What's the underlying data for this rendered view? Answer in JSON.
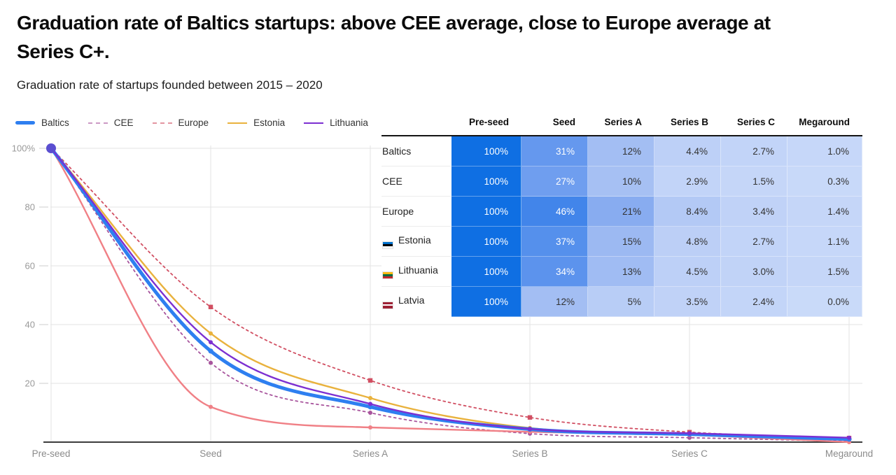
{
  "page": {
    "title": "Graduation rate of Baltics startups: above CEE average, close to Europe average at\nSeries C+.",
    "subtitle": "Graduation rate of startups founded between 2015 – 2020"
  },
  "chart_data": {
    "type": "line",
    "categories": [
      "Pre-seed",
      "Seed",
      "Series A",
      "Series B",
      "Series C",
      "Megaround"
    ],
    "ylim": [
      0,
      100
    ],
    "grid": true,
    "legend_position": "top-left",
    "yticks": [
      {
        "v": 100,
        "label": "100%"
      },
      {
        "v": 80,
        "label": "80"
      },
      {
        "v": 60,
        "label": "60"
      },
      {
        "v": 40,
        "label": "40"
      },
      {
        "v": 20,
        "label": "20"
      }
    ],
    "start_dot_color": "#5a4ed0",
    "axis_color": "#3d3d3d",
    "grid_color": "#e3e3e3",
    "tick_label_color": "#9a9a9a",
    "series": [
      {
        "name": "Baltics",
        "color": "#2e7ff0",
        "dashed": false,
        "width": 5,
        "marker": "circle",
        "values": [
          100,
          31,
          12,
          4.4,
          2.7,
          1.0
        ]
      },
      {
        "name": "CEE",
        "color": "#a8559d",
        "dashed": true,
        "width": 1.8,
        "marker": "circle",
        "values": [
          100,
          27,
          10,
          2.9,
          1.5,
          0.3
        ]
      },
      {
        "name": "Europe",
        "color": "#d14f62",
        "dashed": true,
        "width": 1.8,
        "marker": "square",
        "values": [
          100,
          46,
          21,
          8.4,
          3.4,
          1.4
        ]
      },
      {
        "name": "Estonia",
        "color": "#e9b23d",
        "dashed": false,
        "width": 2.4,
        "marker": "circle",
        "values": [
          100,
          37,
          15,
          4.8,
          2.7,
          1.1
        ]
      },
      {
        "name": "Lithuania",
        "color": "#7c2fd1",
        "dashed": false,
        "width": 2.4,
        "marker": "circle",
        "values": [
          100,
          34,
          13,
          4.5,
          3.0,
          1.5
        ]
      },
      {
        "name": "Latvia",
        "color": "#f08086",
        "dashed": false,
        "width": 2.4,
        "marker": "circle",
        "values": [
          100,
          12,
          5,
          3.5,
          2.4,
          0.0
        ]
      }
    ]
  },
  "table": {
    "columns": [
      "Pre-seed",
      "Seed",
      "Series A",
      "Series B",
      "Series C",
      "Megaround"
    ],
    "rows": [
      {
        "label": "Baltics",
        "flag": null,
        "cells": [
          {
            "t": "100%",
            "bg": "#0f6fe3",
            "fg": "#ffffff"
          },
          {
            "t": "31%",
            "bg": "#6598ee",
            "fg": "#ffffff"
          },
          {
            "t": "12%",
            "bg": "#a3bef3",
            "fg": "#333333"
          },
          {
            "t": "4.4%",
            "bg": "#bdd0f7",
            "fg": "#333333"
          },
          {
            "t": "2.7%",
            "bg": "#c2d4f8",
            "fg": "#333333"
          },
          {
            "t": "1.0%",
            "bg": "#c6d7f9",
            "fg": "#333333"
          }
        ]
      },
      {
        "label": "CEE",
        "flag": null,
        "cells": [
          {
            "t": "100%",
            "bg": "#0f6fe3",
            "fg": "#ffffff"
          },
          {
            "t": "27%",
            "bg": "#6f9eef",
            "fg": "#ffffff"
          },
          {
            "t": "10%",
            "bg": "#a6c0f3",
            "fg": "#333333"
          },
          {
            "t": "2.9%",
            "bg": "#c2d4f8",
            "fg": "#333333"
          },
          {
            "t": "1.5%",
            "bg": "#c5d6f8",
            "fg": "#333333"
          },
          {
            "t": "0.3%",
            "bg": "#c8d9f9",
            "fg": "#333333"
          }
        ]
      },
      {
        "label": "Europe",
        "flag": null,
        "cells": [
          {
            "t": "100%",
            "bg": "#0f6fe3",
            "fg": "#ffffff"
          },
          {
            "t": "46%",
            "bg": "#4285ea",
            "fg": "#ffffff"
          },
          {
            "t": "21%",
            "bg": "#88acf0",
            "fg": "#333333"
          },
          {
            "t": "8.4%",
            "bg": "#b3c9f5",
            "fg": "#333333"
          },
          {
            "t": "3.4%",
            "bg": "#c0d2f7",
            "fg": "#333333"
          },
          {
            "t": "1.4%",
            "bg": "#c5d6f8",
            "fg": "#333333"
          }
        ]
      },
      {
        "label": "Estonia",
        "flag": {
          "colors": [
            "#0072ce",
            "#000000",
            "#ffffff"
          ],
          "weights": [
            1,
            1,
            1
          ]
        },
        "cells": [
          {
            "t": "100%",
            "bg": "#0f6fe3",
            "fg": "#ffffff"
          },
          {
            "t": "37%",
            "bg": "#5590ec",
            "fg": "#ffffff"
          },
          {
            "t": "15%",
            "bg": "#9cb9f2",
            "fg": "#333333"
          },
          {
            "t": "4.8%",
            "bg": "#bccff6",
            "fg": "#333333"
          },
          {
            "t": "2.7%",
            "bg": "#c2d4f8",
            "fg": "#333333"
          },
          {
            "t": "1.1%",
            "bg": "#c6d7f9",
            "fg": "#333333"
          }
        ]
      },
      {
        "label": "Lithuania",
        "flag": {
          "colors": [
            "#fdb913",
            "#006a44",
            "#c1272d"
          ],
          "weights": [
            1,
            1,
            1
          ]
        },
        "cells": [
          {
            "t": "100%",
            "bg": "#0f6fe3",
            "fg": "#ffffff"
          },
          {
            "t": "34%",
            "bg": "#5c93ed",
            "fg": "#ffffff"
          },
          {
            "t": "13%",
            "bg": "#a0bcf3",
            "fg": "#333333"
          },
          {
            "t": "4.5%",
            "bg": "#bdd0f7",
            "fg": "#333333"
          },
          {
            "t": "3.0%",
            "bg": "#c1d3f7",
            "fg": "#333333"
          },
          {
            "t": "1.5%",
            "bg": "#c5d6f8",
            "fg": "#333333"
          }
        ]
      },
      {
        "label": "Latvia",
        "flag": {
          "colors": [
            "#9d2235",
            "#ffffff",
            "#9d2235"
          ],
          "weights": [
            2,
            1,
            2
          ]
        },
        "cells": [
          {
            "t": "100%",
            "bg": "#0f6fe3",
            "fg": "#ffffff"
          },
          {
            "t": "12%",
            "bg": "#a3bef3",
            "fg": "#333333"
          },
          {
            "t": "5%",
            "bg": "#b8cdf6",
            "fg": "#333333"
          },
          {
            "t": "3.5%",
            "bg": "#c0d2f7",
            "fg": "#333333"
          },
          {
            "t": "2.4%",
            "bg": "#c3d5f8",
            "fg": "#333333"
          },
          {
            "t": "0.0%",
            "bg": "#c9daf9",
            "fg": "#333333"
          }
        ]
      }
    ]
  }
}
